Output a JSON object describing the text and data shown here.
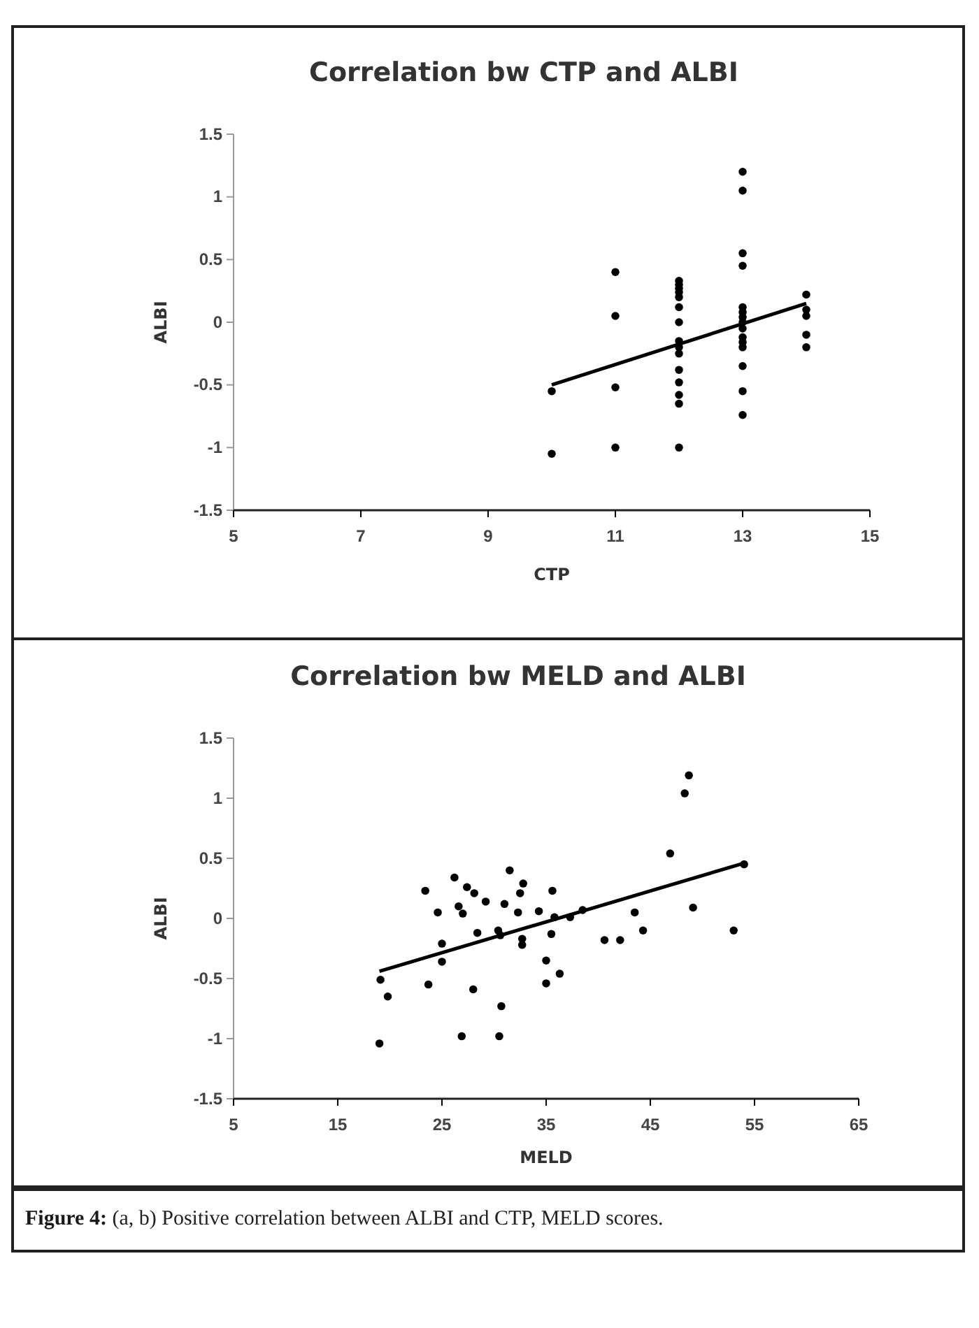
{
  "chart_data": [
    {
      "type": "scatter",
      "title": "Correlation bw CTP and ALBI",
      "xlabel": "CTP",
      "ylabel": "ALBI",
      "xlim": [
        5,
        15
      ],
      "xticks": [
        5,
        7,
        9,
        11,
        13,
        15
      ],
      "ylim": [
        -1.5,
        1.5
      ],
      "yticks": [
        -1.5,
        -1,
        -0.5,
        0,
        0.5,
        1,
        1.5
      ],
      "series": [
        {
          "marker": "circle",
          "color": "#000000",
          "x": [
            10,
            10,
            11,
            11,
            11,
            11,
            12,
            12,
            12,
            12,
            12,
            12,
            12,
            12,
            12,
            12,
            12,
            12,
            12,
            12,
            12,
            13,
            13,
            13,
            13,
            13,
            13,
            13,
            13,
            13,
            13,
            13,
            13,
            13,
            13,
            13,
            14,
            14,
            14,
            14,
            14
          ],
          "values": [
            -0.55,
            -1.05,
            0.4,
            0.05,
            -0.52,
            -1.0,
            0.33,
            0.3,
            0.27,
            0.24,
            0.2,
            0.12,
            0.0,
            -0.15,
            -0.2,
            -0.25,
            -0.38,
            -0.48,
            -0.58,
            -0.65,
            -1.0,
            1.2,
            1.05,
            0.55,
            0.45,
            0.12,
            0.08,
            0.04,
            0.0,
            -0.05,
            -0.12,
            -0.16,
            -0.2,
            -0.35,
            -0.55,
            -0.74,
            0.22,
            0.1,
            0.05,
            -0.1,
            -0.2
          ]
        },
        {
          "type": "line",
          "marker": "none",
          "color": "#000000",
          "x": [
            10,
            14
          ],
          "values": [
            -0.5,
            0.15
          ]
        }
      ]
    },
    {
      "type": "scatter",
      "title": "Correlation bw MELD and ALBI",
      "xlabel": "MELD",
      "ylabel": "ALBI",
      "xlim": [
        5,
        65
      ],
      "xticks": [
        5,
        15,
        25,
        35,
        45,
        55,
        65
      ],
      "ylim": [
        -1.5,
        1.5
      ],
      "yticks": [
        -1.5,
        -1,
        -0.5,
        0,
        0.5,
        1,
        1.5
      ],
      "series": [
        {
          "marker": "circle",
          "color": "#000000",
          "x": [
            19.0,
            19.1,
            19.8,
            23.4,
            23.7,
            24.6,
            25.0,
            25.0,
            26.2,
            26.6,
            27.0,
            26.9,
            27.4,
            28.1,
            28.4,
            28.0,
            29.2,
            30.4,
            30.6,
            30.5,
            30.7,
            31.0,
            31.5,
            32.3,
            32.5,
            32.8,
            32.7,
            32.7,
            34.3,
            35.0,
            35.0,
            35.5,
            35.6,
            35.8,
            36.3,
            37.3,
            38.5,
            40.6,
            42.1,
            43.5,
            44.3,
            46.9,
            48.3,
            48.7,
            49.1,
            53.0,
            54.0
          ],
          "values": [
            -1.04,
            -0.51,
            -0.65,
            0.23,
            -0.55,
            0.05,
            -0.21,
            -0.36,
            0.34,
            0.1,
            0.04,
            -0.98,
            0.26,
            0.21,
            -0.12,
            -0.59,
            0.14,
            -0.1,
            -0.14,
            -0.98,
            -0.73,
            0.12,
            0.4,
            0.05,
            0.21,
            0.29,
            -0.17,
            -0.22,
            0.06,
            -0.35,
            -0.54,
            -0.13,
            0.23,
            0.01,
            -0.46,
            0.01,
            0.07,
            -0.18,
            -0.18,
            0.05,
            -0.1,
            0.54,
            1.04,
            1.19,
            0.09,
            -0.1,
            0.45
          ]
        },
        {
          "type": "line",
          "marker": "none",
          "color": "#000000",
          "x": [
            19,
            54
          ],
          "values": [
            -0.44,
            0.46
          ]
        }
      ],
      "annotations": [
        "Figure 4: (a, b) Positive correlation between ALBI and CTP, MELD scores."
      ]
    }
  ]
}
